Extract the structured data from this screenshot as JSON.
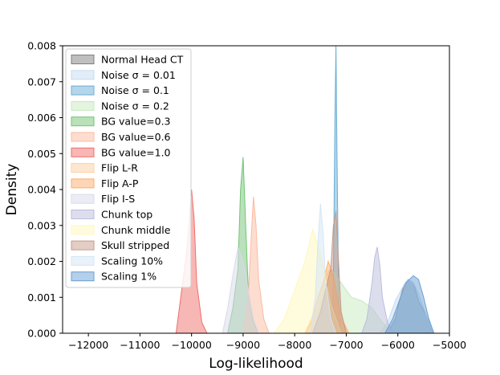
{
  "chart_data": {
    "type": "area",
    "xlabel": "Log-likelihood",
    "ylabel": "Density",
    "xlim": [
      -12500,
      -5000
    ],
    "ylim": [
      0,
      0.008
    ],
    "x_ticks": [
      "−12000",
      "−11000",
      "−10000",
      "−9000",
      "−8000",
      "−7000",
      "−6000",
      "−5000"
    ],
    "x_tick_values": [
      -12000,
      -11000,
      -10000,
      -9000,
      -8000,
      -7000,
      -6000,
      -5000
    ],
    "y_ticks": [
      "0.000",
      "0.001",
      "0.002",
      "0.003",
      "0.004",
      "0.005",
      "0.006",
      "0.007",
      "0.008"
    ],
    "y_tick_values": [
      0,
      0.001,
      0.002,
      0.003,
      0.004,
      0.005,
      0.006,
      0.007,
      0.008
    ],
    "grid": false,
    "legend_position": "upper-left",
    "series": [
      {
        "name": "Normal Head CT",
        "color": "#7f7f7f",
        "x": [
          -6200,
          -6050,
          -5900,
          -5800,
          -5700,
          -5600,
          -5450,
          -5300
        ],
        "values": [
          0,
          0.0004,
          0.0013,
          0.0015,
          0.0014,
          0.0009,
          0.0005,
          0
        ]
      },
      {
        "name": "Noise σ = 0.01",
        "color": "#c6dbef",
        "x": [
          -6350,
          -6200,
          -6050,
          -5900,
          -5800,
          -5700,
          -5600,
          -5450,
          -5300
        ],
        "values": [
          0,
          0.0003,
          0.0009,
          0.0013,
          0.0015,
          0.0014,
          0.0011,
          0.0005,
          0
        ]
      },
      {
        "name": "Noise σ = 0.1",
        "color": "#6baed6",
        "x": [
          -7300,
          -7250,
          -7220,
          -7200,
          -7180,
          -7150,
          -7100
        ],
        "values": [
          0,
          0.0015,
          0.006,
          0.008,
          0.005,
          0.0012,
          0
        ]
      },
      {
        "name": "Noise σ = 0.2",
        "color": "#c7e9c0",
        "x": [
          -7700,
          -7500,
          -7300,
          -7100,
          -6900,
          -6700,
          -6500,
          -6300,
          -6100
        ],
        "values": [
          0,
          0.0008,
          0.0018,
          0.0014,
          0.001,
          0.0009,
          0.0007,
          0.0003,
          0
        ]
      },
      {
        "name": "BG value=0.3",
        "color": "#74c476",
        "x": [
          -9300,
          -9200,
          -9100,
          -9050,
          -9000,
          -8950,
          -8900,
          -8800,
          -8700
        ],
        "values": [
          0,
          0.0007,
          0.0018,
          0.004,
          0.0049,
          0.003,
          0.0012,
          0.0003,
          0
        ]
      },
      {
        "name": "BG value=0.6",
        "color": "#fcbba1",
        "x": [
          -9000,
          -8900,
          -8850,
          -8800,
          -8750,
          -8700,
          -8600,
          -8500
        ],
        "values": [
          0,
          0.001,
          0.0025,
          0.0038,
          0.003,
          0.0015,
          0.0004,
          0
        ]
      },
      {
        "name": "BG value=1.0",
        "color": "#ef6f6c",
        "x": [
          -10300,
          -10200,
          -10100,
          -10050,
          -10000,
          -9950,
          -9900,
          -9800,
          -9700
        ],
        "values": [
          0,
          0.0011,
          0.0022,
          0.003,
          0.004,
          0.0032,
          0.0014,
          0.0003,
          0
        ]
      },
      {
        "name": "Flip L-R",
        "color": "#fdd0a2",
        "x": [
          -7800,
          -7650,
          -7500,
          -7400,
          -7300,
          -7200,
          -7100,
          -7000
        ],
        "values": [
          0,
          0.0005,
          0.0012,
          0.0016,
          0.0018,
          0.001,
          0.0004,
          0
        ]
      },
      {
        "name": "Flip A-P",
        "color": "#fdae6b",
        "x": [
          -7800,
          -7650,
          -7550,
          -7450,
          -7350,
          -7250,
          -7150,
          -7050,
          -6950
        ],
        "values": [
          0,
          0.0004,
          0.001,
          0.0014,
          0.002,
          0.0016,
          0.0008,
          0.0003,
          0
        ]
      },
      {
        "name": "Flip I-S",
        "color": "#dadaeb",
        "x": [
          -9400,
          -9300,
          -9200,
          -9100,
          -9000,
          -8900,
          -8800,
          -8700
        ],
        "values": [
          0,
          0.0007,
          0.0016,
          0.0024,
          0.002,
          0.0012,
          0.0004,
          0
        ]
      },
      {
        "name": "Chunk top",
        "color": "#bcbddc",
        "x": [
          -6700,
          -6600,
          -6500,
          -6450,
          -6400,
          -6350,
          -6300,
          -6200,
          -6100
        ],
        "values": [
          0,
          0.0004,
          0.0014,
          0.0021,
          0.0024,
          0.0019,
          0.001,
          0.0003,
          0
        ]
      },
      {
        "name": "Chunk middle",
        "color": "#fff7bc",
        "x": [
          -8400,
          -8200,
          -8000,
          -7800,
          -7650,
          -7500,
          -7300,
          -7100
        ],
        "values": [
          0,
          0.0004,
          0.0012,
          0.002,
          0.0029,
          0.0022,
          0.0008,
          0
        ]
      },
      {
        "name": "Skull stripped",
        "color": "#c79b89",
        "x": [
          -7650,
          -7500,
          -7400,
          -7300,
          -7250,
          -7200,
          -7150,
          -7100,
          -7000
        ],
        "values": [
          0,
          0.0006,
          0.0012,
          0.0018,
          0.003,
          0.0034,
          0.002,
          0.0006,
          0
        ]
      },
      {
        "name": "Scaling 10%",
        "color": "#d4e6f4",
        "x": [
          -7700,
          -7600,
          -7550,
          -7500,
          -7450,
          -7400,
          -7300,
          -7200
        ],
        "values": [
          0,
          0.001,
          0.0025,
          0.0036,
          0.0028,
          0.0014,
          0.0004,
          0
        ]
      },
      {
        "name": "Scaling 1%",
        "color": "#6a9fd3",
        "x": [
          -6250,
          -6100,
          -5950,
          -5850,
          -5700,
          -5600,
          -5500,
          -5400,
          -5300
        ],
        "values": [
          0,
          0.0004,
          0.001,
          0.0014,
          0.0016,
          0.0015,
          0.001,
          0.0004,
          0
        ]
      }
    ]
  }
}
